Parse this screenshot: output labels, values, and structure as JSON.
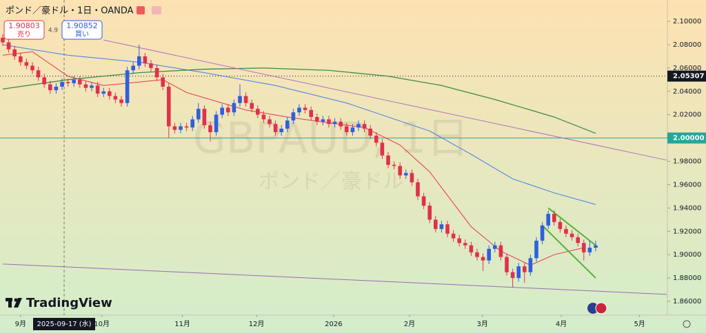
{
  "header": {
    "title": "ポンド／豪ドル・1日・OANDA",
    "sell_price": "1.90803",
    "sell_label": "売り",
    "spread": "4.9",
    "buy_price": "1.90852",
    "buy_label": "買い"
  },
  "watermark": {
    "symbol": "GBPAUD, 1日",
    "name": "ポンド／豪ドル"
  },
  "logo": "TradingView",
  "chart_data": {
    "type": "candlestick",
    "up_color": "#2f5ee0",
    "down_color": "#e0314b",
    "ylim": [
      1.8482,
      2.1183
    ],
    "yticks": [
      {
        "value": 2.1,
        "label": "2.10000"
      },
      {
        "value": 2.08,
        "label": "2.08000"
      },
      {
        "value": 2.06,
        "label": "2.06000"
      },
      {
        "value": 2.04,
        "label": "2.04000"
      },
      {
        "value": 2.02,
        "label": "2.02000"
      },
      {
        "value": 2.0,
        "label": "2.00000"
      },
      {
        "value": 1.98,
        "label": "1.98000"
      },
      {
        "value": 1.96,
        "label": "1.96000"
      },
      {
        "value": 1.94,
        "label": "1.94000"
      },
      {
        "value": 1.92,
        "label": "1.92000"
      },
      {
        "value": 1.9,
        "label": "1.90000"
      },
      {
        "value": 1.88,
        "label": "1.88000"
      },
      {
        "value": 1.86,
        "label": "1.86000"
      }
    ],
    "xticks": [
      {
        "value": 3,
        "label": "9月"
      },
      {
        "value": 16.7,
        "label": "10月"
      },
      {
        "value": 30.3,
        "label": "11月"
      },
      {
        "value": 42.8,
        "label": "12月"
      },
      {
        "value": 55.8,
        "label": "2026"
      },
      {
        "value": 68.6,
        "label": "2月"
      },
      {
        "value": 80.9,
        "label": "3月"
      },
      {
        "value": 94.2,
        "label": "4月"
      },
      {
        "value": 107.4,
        "label": "5月"
      }
    ],
    "crosshair": {
      "x": 10.35,
      "label": "2025-09-17 (水)"
    },
    "price_lines": [
      {
        "value": 2.05307,
        "label": "2.05307",
        "color": "#131722",
        "style": "dotted"
      },
      {
        "value": 2.0,
        "label": "2.00000",
        "color": "#26a69a",
        "style": "solid"
      }
    ],
    "candles": [
      [
        2.086,
        2.089,
        2.079,
        2.082
      ],
      [
        2.082,
        2.085,
        2.073,
        2.076
      ],
      [
        2.076,
        2.079,
        2.067,
        2.07
      ],
      [
        2.07,
        2.073,
        2.062,
        2.065
      ],
      [
        2.065,
        2.068,
        2.059,
        2.062
      ],
      [
        2.062,
        2.065,
        2.055,
        2.058
      ],
      [
        2.058,
        2.061,
        2.049,
        2.052
      ],
      [
        2.052,
        2.055,
        2.043,
        2.046
      ],
      [
        2.046,
        2.049,
        2.038,
        2.041
      ],
      [
        2.041,
        2.047,
        2.038,
        2.044
      ],
      [
        2.044,
        2.051,
        2.041,
        2.048
      ],
      [
        2.048,
        2.051,
        2.044,
        2.047
      ],
      [
        2.047,
        2.053,
        2.044,
        2.05
      ],
      [
        2.05,
        2.053,
        2.043,
        2.046
      ],
      [
        2.046,
        2.049,
        2.04,
        2.043
      ],
      [
        2.043,
        2.048,
        2.04,
        2.045
      ],
      [
        2.045,
        2.048,
        2.035,
        2.038
      ],
      [
        2.038,
        2.043,
        2.035,
        2.04
      ],
      [
        2.04,
        2.043,
        2.033,
        2.036
      ],
      [
        2.036,
        2.039,
        2.03,
        2.033
      ],
      [
        2.033,
        2.036,
        2.027,
        2.03
      ],
      [
        2.03,
        2.061,
        2.027,
        2.058
      ],
      [
        2.058,
        2.065,
        2.055,
        2.062
      ],
      [
        2.062,
        2.08,
        2.059,
        2.07
      ],
      [
        2.07,
        2.073,
        2.061,
        2.064
      ],
      [
        2.064,
        2.067,
        2.057,
        2.06
      ],
      [
        2.06,
        2.063,
        2.049,
        2.052
      ],
      [
        2.052,
        2.055,
        2.041,
        2.044
      ],
      [
        2.044,
        2.047,
        2.0,
        2.01
      ],
      [
        2.01,
        2.013,
        2.004,
        2.007
      ],
      [
        2.007,
        2.013,
        2.004,
        2.01
      ],
      [
        2.01,
        2.013,
        2.006,
        2.009
      ],
      [
        2.009,
        2.019,
        2.006,
        2.016
      ],
      [
        2.016,
        2.03,
        2.013,
        2.025
      ],
      [
        2.025,
        2.028,
        2.008,
        2.011
      ],
      [
        2.011,
        2.014,
        1.997,
        2.005
      ],
      [
        2.005,
        2.023,
        2.002,
        2.02
      ],
      [
        2.02,
        2.029,
        2.017,
        2.026
      ],
      [
        2.026,
        2.029,
        2.019,
        2.022
      ],
      [
        2.022,
        2.033,
        2.019,
        2.03
      ],
      [
        2.03,
        2.046,
        2.027,
        2.036
      ],
      [
        2.036,
        2.039,
        2.027,
        2.03
      ],
      [
        2.03,
        2.033,
        2.022,
        2.025
      ],
      [
        2.025,
        2.028,
        2.017,
        2.02
      ],
      [
        2.02,
        2.023,
        2.013,
        2.016
      ],
      [
        2.016,
        2.019,
        2.009,
        2.012
      ],
      [
        2.012,
        2.015,
        2.002,
        2.005
      ],
      [
        2.005,
        2.011,
        2.002,
        2.008
      ],
      [
        2.008,
        2.018,
        2.005,
        2.015
      ],
      [
        2.015,
        2.025,
        2.012,
        2.022
      ],
      [
        2.022,
        2.029,
        2.019,
        2.026
      ],
      [
        2.026,
        2.029,
        2.021,
        2.024
      ],
      [
        2.024,
        2.027,
        2.015,
        2.018
      ],
      [
        2.018,
        2.021,
        2.011,
        2.014
      ],
      [
        2.014,
        2.019,
        2.011,
        2.016
      ],
      [
        2.016,
        2.019,
        2.009,
        2.012
      ],
      [
        2.012,
        2.017,
        2.009,
        2.014
      ],
      [
        2.014,
        2.017,
        2.007,
        2.01
      ],
      [
        2.01,
        2.013,
        2.002,
        2.005
      ],
      [
        2.005,
        2.012,
        2.002,
        2.009
      ],
      [
        2.009,
        2.015,
        2.006,
        2.012
      ],
      [
        2.012,
        2.015,
        2.005,
        2.008
      ],
      [
        2.008,
        2.011,
        1.999,
        2.002
      ],
      [
        2.002,
        2.005,
        1.993,
        1.996
      ],
      [
        1.996,
        1.999,
        1.982,
        1.985
      ],
      [
        1.985,
        1.988,
        1.974,
        1.977
      ],
      [
        1.977,
        1.98,
        1.973,
        1.976
      ],
      [
        1.976,
        1.979,
        1.965,
        1.968
      ],
      [
        1.968,
        1.973,
        1.965,
        1.97
      ],
      [
        1.97,
        1.973,
        1.959,
        1.962
      ],
      [
        1.962,
        1.965,
        1.947,
        1.95
      ],
      [
        1.95,
        1.953,
        1.939,
        1.942
      ],
      [
        1.942,
        1.945,
        1.927,
        1.93
      ],
      [
        1.93,
        1.933,
        1.919,
        1.922
      ],
      [
        1.922,
        1.929,
        1.919,
        1.926
      ],
      [
        1.926,
        1.929,
        1.915,
        1.918
      ],
      [
        1.918,
        1.921,
        1.911,
        1.914
      ],
      [
        1.914,
        1.917,
        1.907,
        1.91
      ],
      [
        1.91,
        1.913,
        1.905,
        1.908
      ],
      [
        1.908,
        1.911,
        1.899,
        1.902
      ],
      [
        1.902,
        1.905,
        1.895,
        1.898
      ],
      [
        1.898,
        1.901,
        1.886,
        1.895
      ],
      [
        1.895,
        1.908,
        1.892,
        1.905
      ],
      [
        1.905,
        1.911,
        1.902,
        1.908
      ],
      [
        1.908,
        1.911,
        1.895,
        1.898
      ],
      [
        1.898,
        1.901,
        1.882,
        1.885
      ],
      [
        1.885,
        1.888,
        1.872,
        1.88
      ],
      [
        1.88,
        1.893,
        1.877,
        1.89
      ],
      [
        1.89,
        1.893,
        1.876,
        1.885
      ],
      [
        1.885,
        1.9,
        1.882,
        1.897
      ],
      [
        1.897,
        1.915,
        1.894,
        1.912
      ],
      [
        1.912,
        1.928,
        1.909,
        1.925
      ],
      [
        1.925,
        1.938,
        1.922,
        1.935
      ],
      [
        1.935,
        1.938,
        1.925,
        1.928
      ],
      [
        1.928,
        1.931,
        1.919,
        1.922
      ],
      [
        1.922,
        1.925,
        1.915,
        1.918
      ],
      [
        1.918,
        1.921,
        1.912,
        1.915
      ],
      [
        1.915,
        1.918,
        1.907,
        1.91
      ],
      [
        1.91,
        1.913,
        1.895,
        1.902
      ],
      [
        1.902,
        1.912,
        1.899,
        1.906
      ],
      [
        1.906,
        1.912,
        1.903,
        1.908
      ]
    ],
    "overlays": [
      {
        "color": "#e8334a",
        "width": 1,
        "x": [
          0,
          5,
          11,
          17,
          23,
          27,
          31,
          37,
          41,
          48,
          55,
          61,
          67,
          72,
          79,
          84,
          89,
          93,
          98
        ],
        "values": [
          2.071,
          2.074,
          2.053,
          2.045,
          2.048,
          2.05,
          2.039,
          2.03,
          2.024,
          2.018,
          2.013,
          2.009,
          1.994,
          1.971,
          1.924,
          1.903,
          1.891,
          1.9,
          1.906
        ]
      },
      {
        "color": "#3d7ee8",
        "width": 1,
        "x": [
          0,
          11,
          23,
          34,
          46,
          58,
          65,
          72,
          79,
          86,
          93,
          100
        ],
        "values": [
          2.08,
          2.071,
          2.065,
          2.056,
          2.045,
          2.03,
          2.018,
          2.006,
          1.986,
          1.965,
          1.953,
          1.943
        ]
      },
      {
        "color": "#3a8a4a",
        "width": 1.3,
        "x": [
          0,
          11,
          23,
          34,
          44,
          55,
          65,
          74,
          83,
          93,
          100
        ],
        "values": [
          2.042,
          2.05,
          2.056,
          2.059,
          2.06,
          2.058,
          2.053,
          2.045,
          2.033,
          2.018,
          2.004
        ]
      },
      {
        "color": "#b070c0",
        "width": 1,
        "x": [
          17,
          112
        ],
        "values": [
          2.084,
          1.981
        ]
      },
      {
        "color": "#9a6ab0",
        "width": 1,
        "x": [
          0,
          112
        ],
        "values": [
          1.892,
          1.866
        ]
      },
      {
        "color": "#58b03a",
        "width": 2,
        "x": [
          92,
          100
        ],
        "values": [
          1.94,
          1.908
        ]
      },
      {
        "color": "#58b03a",
        "width": 2,
        "x": [
          91,
          100
        ],
        "values": [
          1.925,
          1.88
        ]
      }
    ]
  }
}
